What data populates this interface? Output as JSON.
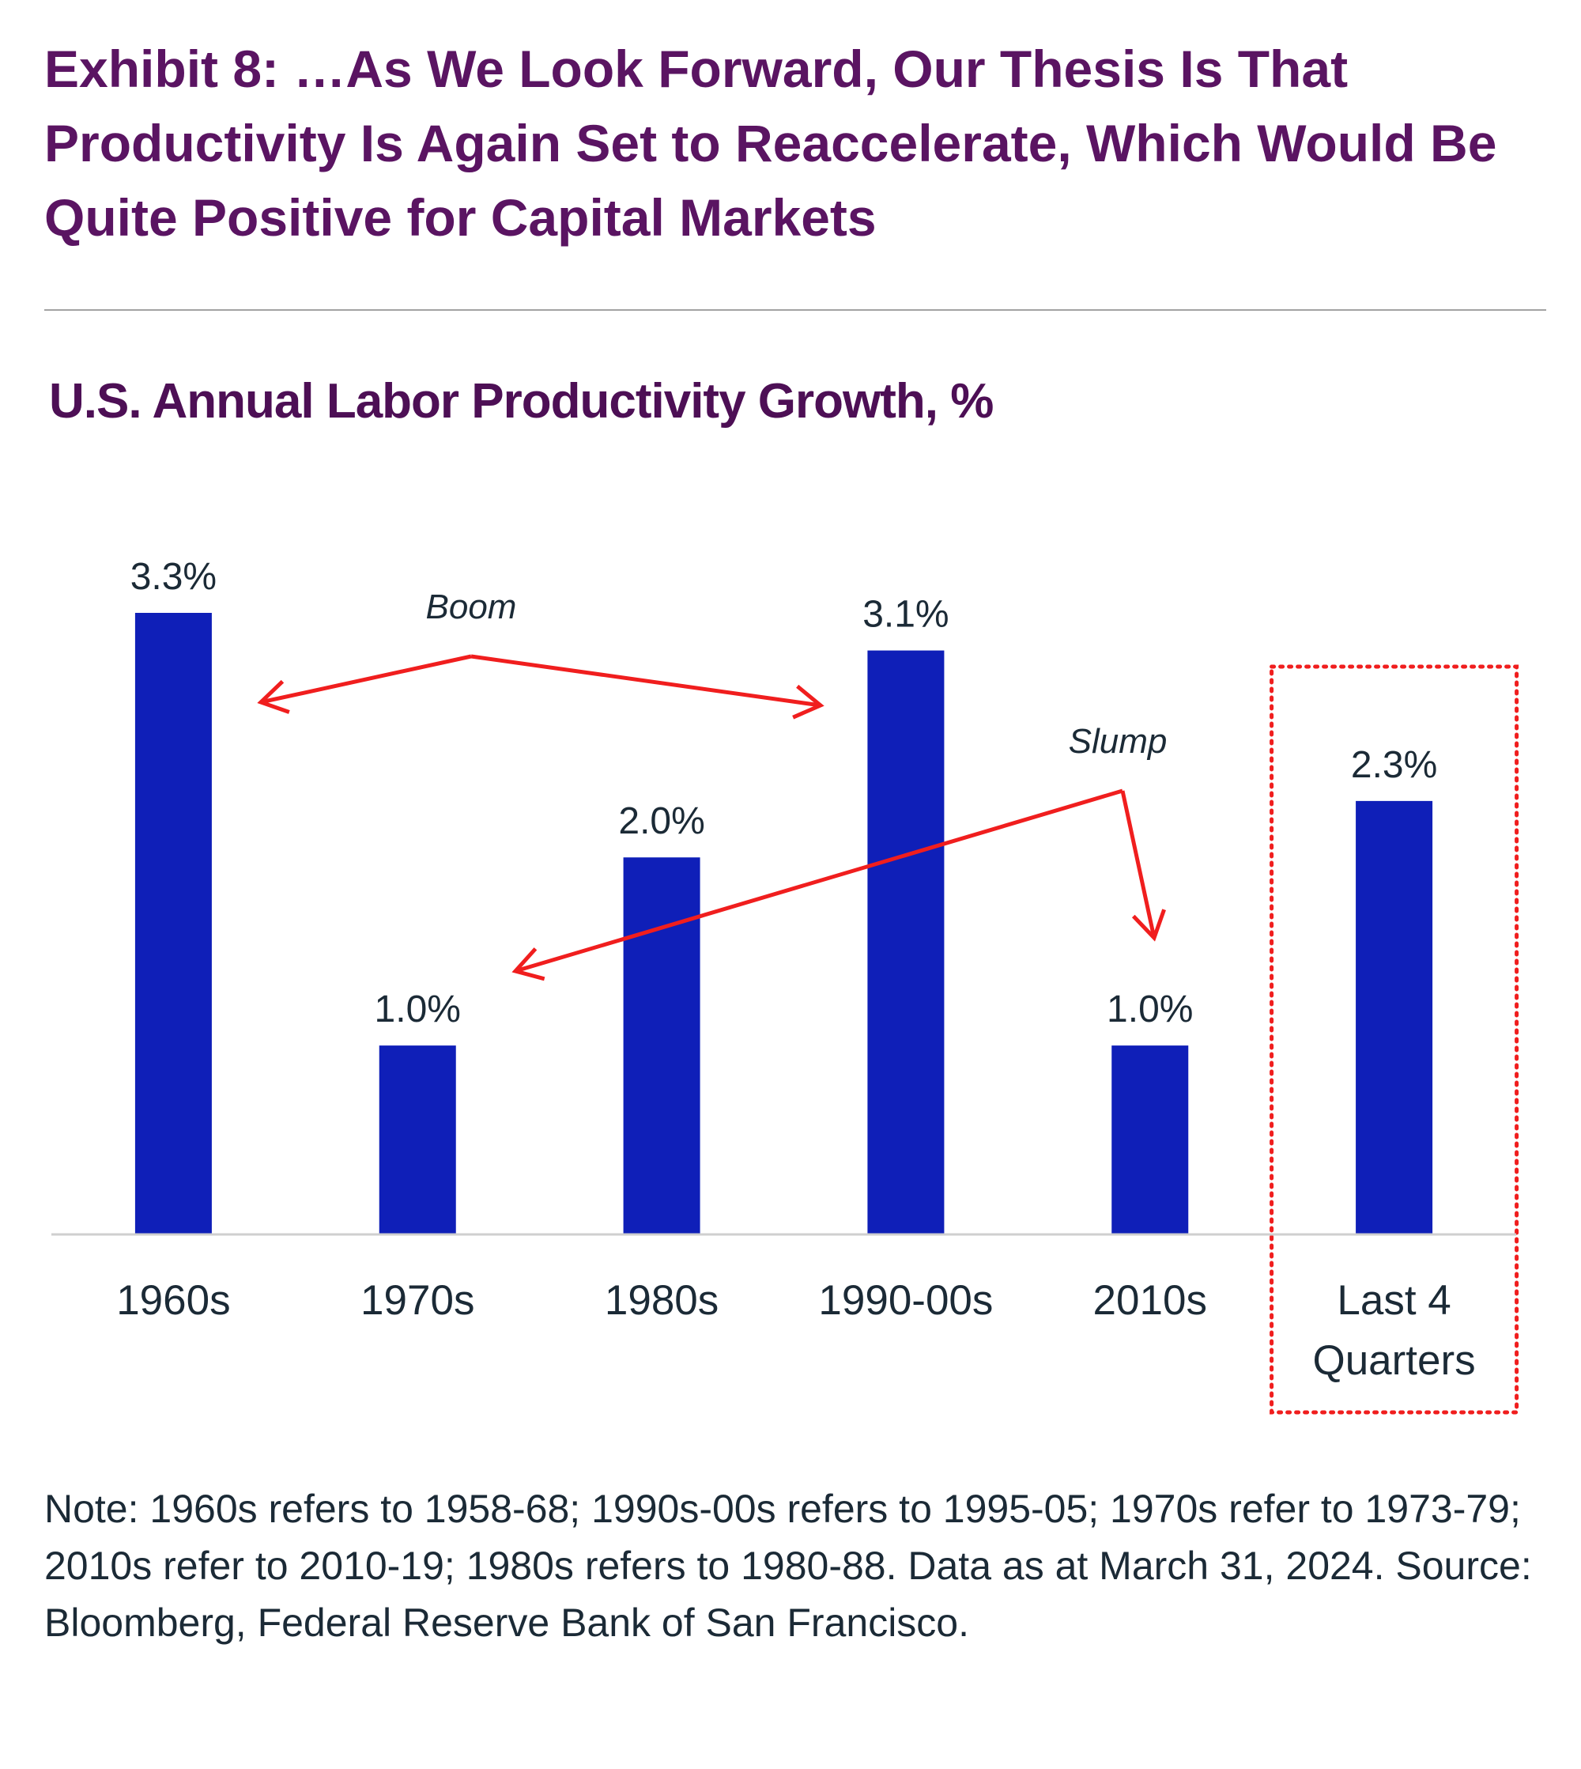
{
  "header": {
    "exhibit_label": "Exhibit 8:",
    "exhibit_text": " …As We Look Forward, Our Thesis Is That Productivity Is Again Set to Reaccelerate, Which Would Be Quite Positive for Capital Markets"
  },
  "chart_data": {
    "type": "bar",
    "title": "U.S. Annual Labor Productivity Growth, %",
    "categories": [
      "1960s",
      "1970s",
      "1980s",
      "1990-00s",
      "2010s",
      "Last 4 Quarters"
    ],
    "category_lines": [
      [
        "1960s"
      ],
      [
        "1970s"
      ],
      [
        "1980s"
      ],
      [
        "1990-00s"
      ],
      [
        "2010s"
      ],
      [
        "Last 4",
        "Quarters"
      ]
    ],
    "values": [
      3.3,
      1.0,
      2.0,
      3.1,
      1.0,
      2.3
    ],
    "data_labels": [
      "3.3%",
      "1.0%",
      "2.0%",
      "3.1%",
      "1.0%",
      "2.3%"
    ],
    "ylim": [
      0,
      3.3
    ],
    "bar_color": "#0f1fb8",
    "annotation_color": "#f01e1e",
    "annotations": [
      {
        "label": "Boom",
        "links": [
          "1960s",
          "1990-00s"
        ]
      },
      {
        "label": "Slump",
        "links": [
          "1970s",
          "2010s"
        ]
      }
    ],
    "highlight": "Last 4 Quarters",
    "grid": false
  },
  "note": "Note: 1960s refers to 1958-68; 1990s-00s refers to 1995-05; 1970s refer to 1973-79; 2010s refer to 2010-19; 1980s refers to 1980-88. Data as at March 31, 2024. Source: Bloomberg, Federal Reserve Bank of San Francisco."
}
